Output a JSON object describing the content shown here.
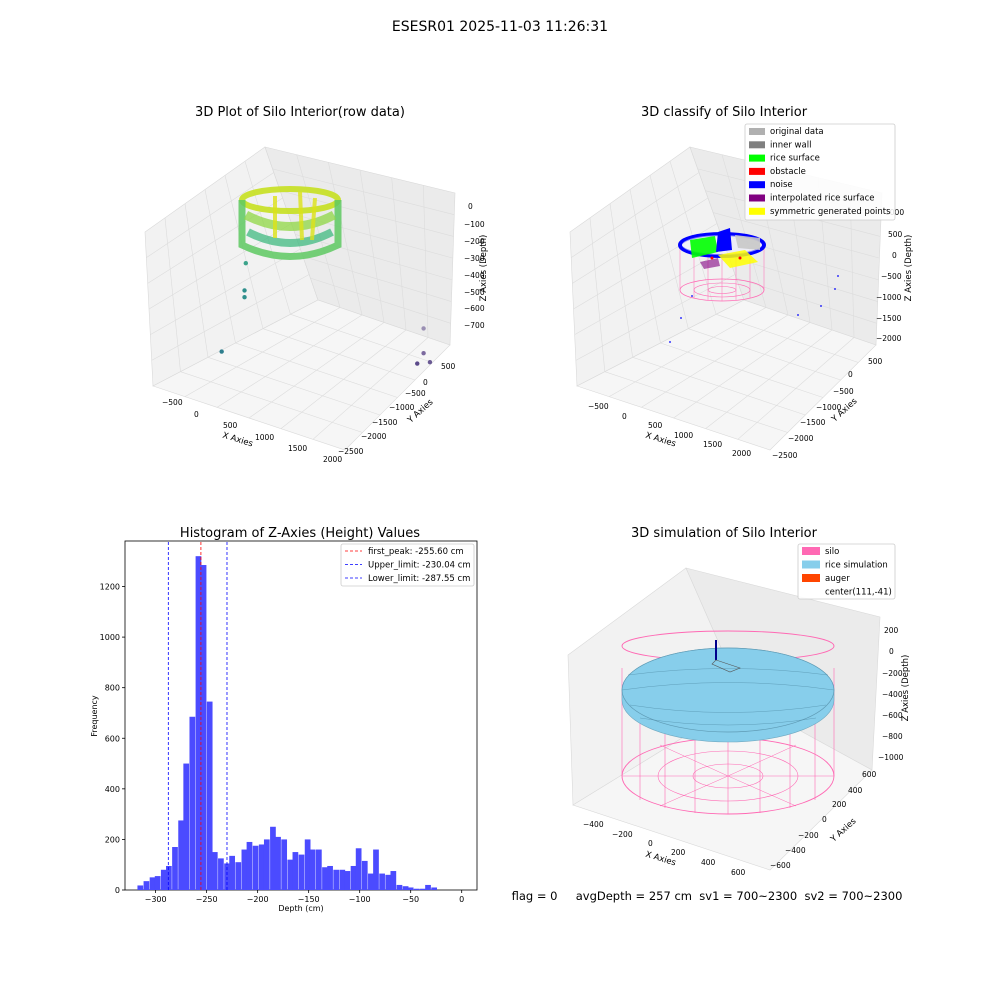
{
  "figure_title": "ESESR01 2025-11-03 11:26:31",
  "footer_text": "flag = 0     avgDepth = 257 cm  sv1 = 700~2300  sv2 = 700~2300",
  "chart_data": [
    {
      "type": "scatter3d",
      "title": "3D Plot of Silo Interior(row data)",
      "xlabel": "X Axies",
      "ylabel": "Y Axies",
      "zlabel": "Z Axies (Depth)",
      "xticks": [
        "−500",
        "0",
        "500",
        "1000",
        "1500",
        "2000"
      ],
      "yticks": [
        "500",
        "0",
        "−500",
        "−1000",
        "−1500",
        "−2000",
        "−2500"
      ],
      "zticks": [
        "0",
        "−100",
        "−200",
        "−300",
        "−400",
        "−500",
        "−600",
        "−700"
      ],
      "colormap": "viridis",
      "outlier_points": [
        {
          "x": 400,
          "y": 500,
          "z": -480,
          "color": "#3ba38a"
        },
        {
          "x": 390,
          "y": 500,
          "z": -560,
          "color": "#2f8f8c"
        },
        {
          "x": 390,
          "y": 500,
          "z": -580,
          "color": "#2f8f8c"
        },
        {
          "x": 210,
          "y": 500,
          "z": -740,
          "color": "#2e7f8e"
        },
        {
          "x": 1800,
          "y": -200,
          "z": -660,
          "color": "#9a8fb3"
        },
        {
          "x": 1800,
          "y": -250,
          "z": -730,
          "color": "#7c6a9f"
        },
        {
          "x": 1750,
          "y": -600,
          "z": -740,
          "color": "#5b4a8a"
        },
        {
          "x": 1850,
          "y": -700,
          "z": -730,
          "color": "#6a5a94"
        }
      ]
    },
    {
      "type": "scatter3d",
      "title": "3D classify of Silo Interior",
      "xlabel": "X Axies",
      "ylabel": "Y Axies",
      "zlabel": "Z Axies (Depth)",
      "xticks": [
        "−500",
        "0",
        "500",
        "1000",
        "1500",
        "2000"
      ],
      "yticks": [
        "500",
        "0",
        "−500",
        "−1000",
        "−1500",
        "−2000",
        "−2500"
      ],
      "zticks": [
        "1000",
        "500",
        "0",
        "−500",
        "−1000",
        "−1500",
        "−2000"
      ],
      "legend": [
        {
          "label": "original data",
          "color": "#b0b0b0"
        },
        {
          "label": "inner wall",
          "color": "#808080"
        },
        {
          "label": "rice surface",
          "color": "#00ff00"
        },
        {
          "label": "obstacle",
          "color": "#ff0000"
        },
        {
          "label": "noise",
          "color": "#0000ff"
        },
        {
          "label": "interpolated rice surface",
          "color": "#800080"
        },
        {
          "label": "symmetric generated points",
          "color": "#ffff00"
        }
      ]
    },
    {
      "type": "histogram",
      "title": "Histogram of Z-Axies (Height) Values",
      "xlabel": "Depth (cm)",
      "ylabel": "Frequency",
      "bar_color": "#4b4bff",
      "xlim": [
        -330,
        15
      ],
      "ylim": [
        0,
        1380
      ],
      "xticks": [
        -300,
        -250,
        -200,
        -150,
        -100,
        -50,
        0
      ],
      "yticks": [
        0,
        200,
        400,
        600,
        800,
        1000,
        1200
      ],
      "bin_width": 5.6,
      "bins": [
        {
          "x": -315,
          "count": 18
        },
        {
          "x": -309,
          "count": 35
        },
        {
          "x": -303,
          "count": 50
        },
        {
          "x": -298,
          "count": 55
        },
        {
          "x": -292,
          "count": 80
        },
        {
          "x": -287,
          "count": 95
        },
        {
          "x": -281,
          "count": 170
        },
        {
          "x": -275,
          "count": 275
        },
        {
          "x": -270,
          "count": 500
        },
        {
          "x": -264,
          "count": 685
        },
        {
          "x": -258,
          "count": 1320
        },
        {
          "x": -253,
          "count": 1285
        },
        {
          "x": -247,
          "count": 745
        },
        {
          "x": -242,
          "count": 150
        },
        {
          "x": -236,
          "count": 125
        },
        {
          "x": -230,
          "count": 105
        },
        {
          "x": -225,
          "count": 135
        },
        {
          "x": -219,
          "count": 110
        },
        {
          "x": -213,
          "count": 160
        },
        {
          "x": -208,
          "count": 190
        },
        {
          "x": -202,
          "count": 175
        },
        {
          "x": -196,
          "count": 180
        },
        {
          "x": -191,
          "count": 200
        },
        {
          "x": -185,
          "count": 250
        },
        {
          "x": -180,
          "count": 210
        },
        {
          "x": -174,
          "count": 200
        },
        {
          "x": -168,
          "count": 120
        },
        {
          "x": -163,
          "count": 150
        },
        {
          "x": -157,
          "count": 140
        },
        {
          "x": -151,
          "count": 200
        },
        {
          "x": -146,
          "count": 160
        },
        {
          "x": -140,
          "count": 160
        },
        {
          "x": -134,
          "count": 90
        },
        {
          "x": -129,
          "count": 95
        },
        {
          "x": -123,
          "count": 80
        },
        {
          "x": -117,
          "count": 80
        },
        {
          "x": -112,
          "count": 75
        },
        {
          "x": -106,
          "count": 95
        },
        {
          "x": -101,
          "count": 165
        },
        {
          "x": -95,
          "count": 115
        },
        {
          "x": -89,
          "count": 65
        },
        {
          "x": -84,
          "count": 160
        },
        {
          "x": -78,
          "count": 65
        },
        {
          "x": -72,
          "count": 60
        },
        {
          "x": -67,
          "count": 75
        },
        {
          "x": -61,
          "count": 20
        },
        {
          "x": -55,
          "count": 15
        },
        {
          "x": -50,
          "count": 10
        },
        {
          "x": -44,
          "count": 5
        },
        {
          "x": -38,
          "count": 5
        },
        {
          "x": -33,
          "count": 20
        },
        {
          "x": -27,
          "count": 10
        }
      ],
      "reference_lines": [
        {
          "label": "first_peak: -255.60 cm",
          "x": -255.6,
          "color": "#ff0000"
        },
        {
          "label": "Upper_limit: -230.04 cm",
          "x": -230.04,
          "color": "#0000ff"
        },
        {
          "label": "Lower_limit: -287.55 cm",
          "x": -287.55,
          "color": "#0000ff"
        }
      ]
    },
    {
      "type": "surface3d",
      "title": "3D simulation of Silo Interior",
      "xlabel": "X Axies",
      "ylabel": "Y Axies",
      "zlabel": "Z Axies (Depth)",
      "xticks": [
        "−400",
        "−200",
        "0",
        "200",
        "400",
        "600"
      ],
      "yticks": [
        "600",
        "400",
        "200",
        "0",
        "−200",
        "−400",
        "−600"
      ],
      "zticks": [
        "200",
        "0",
        "−200",
        "−400",
        "−600",
        "−800",
        "−1000"
      ],
      "legend": [
        {
          "label": "silo",
          "color": "#ff69b4"
        },
        {
          "label": "rice simulation",
          "color": "#87ceeb"
        },
        {
          "label": "auger",
          "color": "#ff4500"
        },
        {
          "label": "center(111,-41)",
          "color": ""
        }
      ]
    }
  ]
}
